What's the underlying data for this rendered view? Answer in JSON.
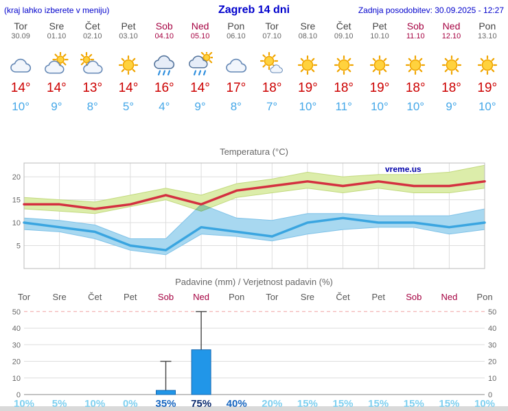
{
  "header": {
    "left_note": "(kraj lahko izberete v meniju)",
    "title": "Zagreb 14 dni",
    "updated": "Zadnja posodobitev: 30.09.2025 - 12:27"
  },
  "watermark": "vreme.us",
  "days": [
    {
      "name": "Tor",
      "date": "30.09",
      "weekend": false,
      "icon": "cloudy",
      "tmax": "14°",
      "tmin": "10°"
    },
    {
      "name": "Sre",
      "date": "01.10",
      "weekend": false,
      "icon": "partly-cloudy",
      "tmax": "14°",
      "tmin": "9°"
    },
    {
      "name": "Čet",
      "date": "02.10",
      "weekend": false,
      "icon": "mostly-cloudy",
      "tmax": "13°",
      "tmin": "8°"
    },
    {
      "name": "Pet",
      "date": "03.10",
      "weekend": false,
      "icon": "sunny",
      "tmax": "14°",
      "tmin": "5°"
    },
    {
      "name": "Sob",
      "date": "04.10",
      "weekend": true,
      "icon": "rain",
      "tmax": "16°",
      "tmin": "4°"
    },
    {
      "name": "Ned",
      "date": "05.10",
      "weekend": true,
      "icon": "rain-sun",
      "tmax": "14°",
      "tmin": "9°"
    },
    {
      "name": "Pon",
      "date": "06.10",
      "weekend": false,
      "icon": "cloudy",
      "tmax": "17°",
      "tmin": "8°"
    },
    {
      "name": "Tor",
      "date": "07.10",
      "weekend": false,
      "icon": "partly-sunny",
      "tmax": "18°",
      "tmin": "7°"
    },
    {
      "name": "Sre",
      "date": "08.10",
      "weekend": false,
      "icon": "sunny",
      "tmax": "19°",
      "tmin": "10°"
    },
    {
      "name": "Čet",
      "date": "09.10",
      "weekend": false,
      "icon": "sunny",
      "tmax": "18°",
      "tmin": "11°"
    },
    {
      "name": "Pet",
      "date": "10.10",
      "weekend": false,
      "icon": "sunny",
      "tmax": "19°",
      "tmin": "10°"
    },
    {
      "name": "Sob",
      "date": "11.10",
      "weekend": true,
      "icon": "sunny",
      "tmax": "18°",
      "tmin": "10°"
    },
    {
      "name": "Ned",
      "date": "12.10",
      "weekend": true,
      "icon": "sunny",
      "tmax": "18°",
      "tmin": "9°"
    },
    {
      "name": "Pon",
      "date": "13.10",
      "weekend": false,
      "icon": "sunny",
      "tmax": "19°",
      "tmin": "10°"
    }
  ],
  "chart_data": [
    {
      "type": "line",
      "title": "Temperatura (°C)",
      "categories": [
        "Tor",
        "Sre",
        "Čet",
        "Pet",
        "Sob",
        "Ned",
        "Pon",
        "Tor",
        "Sre",
        "Čet",
        "Pet",
        "Sob",
        "Ned",
        "Pon"
      ],
      "ylim": [
        0,
        23
      ],
      "yticks": [
        5,
        10,
        15,
        20
      ],
      "grid": true,
      "series": [
        {
          "name": "max_temp",
          "values": [
            14,
            14,
            13,
            14,
            16,
            14,
            17,
            18,
            19,
            18,
            19,
            18,
            18,
            19
          ]
        },
        {
          "name": "max_band_high",
          "values": [
            15.5,
            15,
            14.5,
            16,
            17.5,
            16,
            18.5,
            19.5,
            21,
            20,
            20.5,
            20.5,
            21,
            22.5
          ]
        },
        {
          "name": "max_band_low",
          "values": [
            13,
            12.5,
            12,
            13.5,
            15,
            12.5,
            15.5,
            16.5,
            17.5,
            16.5,
            17.5,
            16.5,
            16.5,
            17.5
          ]
        },
        {
          "name": "min_temp",
          "values": [
            10,
            9,
            8,
            5,
            4,
            9,
            8,
            7,
            10,
            11,
            10,
            10,
            9,
            10
          ]
        },
        {
          "name": "min_band_high",
          "values": [
            11,
            10.5,
            9.5,
            6.5,
            6.5,
            14,
            11,
            10.5,
            12,
            12,
            11.5,
            11.5,
            11.5,
            13
          ]
        },
        {
          "name": "min_band_low",
          "values": [
            8.5,
            8,
            6.5,
            4,
            3,
            7.5,
            7,
            6,
            7.5,
            8.5,
            9,
            9,
            7.5,
            8.5
          ]
        }
      ]
    },
    {
      "type": "bar",
      "title": "Padavine (mm) / Verjetnost padavin (%)",
      "categories": [
        "Tor",
        "Sre",
        "Čet",
        "Pet",
        "Sob",
        "Ned",
        "Pon",
        "Tor",
        "Sre",
        "Čet",
        "Pet",
        "Sob",
        "Ned",
        "Pon"
      ],
      "ylim": [
        0,
        52
      ],
      "yticks": [
        0,
        10,
        20,
        30,
        40,
        50
      ],
      "precip_mm": [
        0,
        0,
        0,
        0,
        2.5,
        27,
        0,
        0,
        0,
        0,
        0,
        0,
        0,
        0
      ],
      "precip_max_mm": [
        0,
        0,
        0,
        0,
        20,
        50,
        0,
        0,
        0,
        0,
        0,
        0,
        0,
        0
      ],
      "probabilities_pct": [
        10,
        5,
        10,
        0,
        35,
        75,
        40,
        20,
        15,
        15,
        15,
        15,
        15,
        10
      ]
    }
  ],
  "colors": {
    "accent_blue": "#0000cc",
    "tmax_red": "#cc0000",
    "tmin_blue": "#44a7e8",
    "weekend_red": "#a50040",
    "temp_line_max": "#d43040",
    "temp_line_min": "#3aa5e0",
    "band_green": "#dcedaa",
    "band_blue": "#a8d8f0",
    "bar_blue": "#2196e8",
    "prob_low": "#7fd0f0",
    "prob_mid": "#1565c0",
    "prob_high": "#0a2a6e"
  }
}
